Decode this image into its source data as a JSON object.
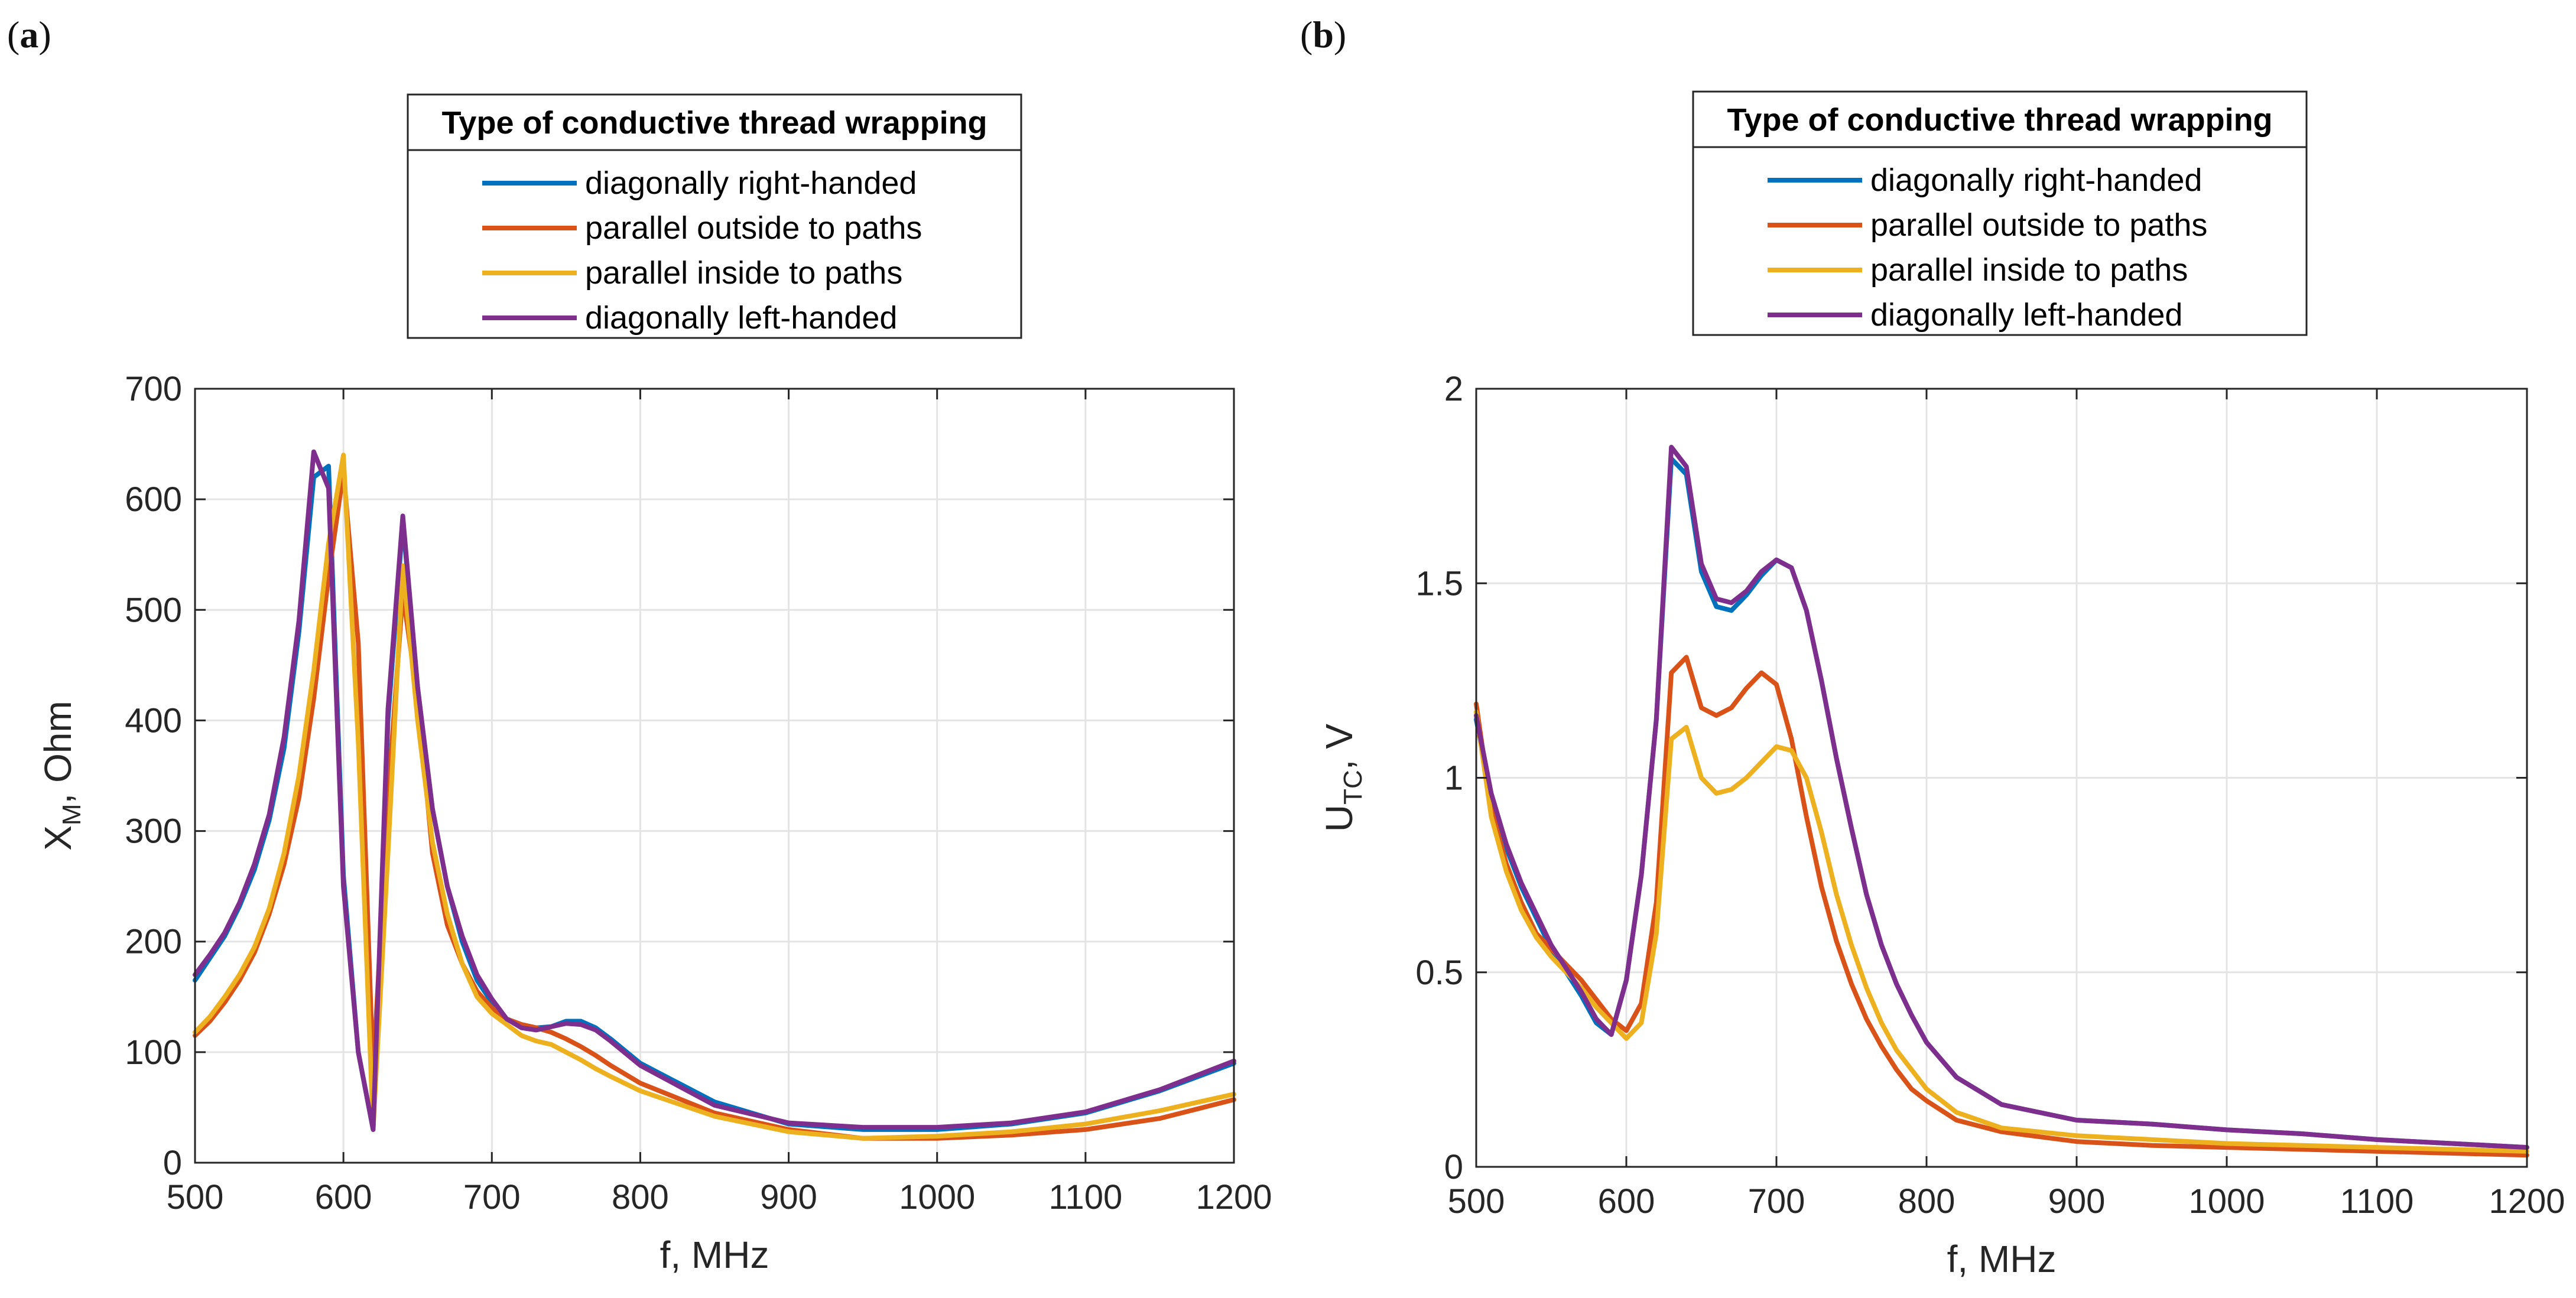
{
  "panels": [
    {
      "letter": "a"
    },
    {
      "letter": "b"
    }
  ],
  "chart_data": [
    {
      "type": "line",
      "panel": "(a)",
      "xlabel": "f, MHz",
      "ylabel": "X_M, Ohm",
      "ylabel_main": "X",
      "ylabel_sub": "M",
      "ylabel_rest": ", Ohm",
      "xlim": [
        500,
        1200
      ],
      "ylim": [
        0,
        700
      ],
      "xticks": [
        500,
        600,
        700,
        800,
        900,
        1000,
        1100,
        1200
      ],
      "yticks": [
        0,
        100,
        200,
        300,
        400,
        500,
        600,
        700
      ],
      "grid": true,
      "legend": {
        "title": "Type of conductive thread wrapping",
        "position": "top-center-outside"
      },
      "series": [
        {
          "name": "diagonally right-handed",
          "color": "#0072BD",
          "x": [
            500,
            510,
            520,
            530,
            540,
            550,
            560,
            570,
            580,
            590,
            600,
            610,
            620,
            630,
            640,
            650,
            660,
            670,
            680,
            690,
            700,
            710,
            720,
            730,
            740,
            750,
            760,
            770,
            780,
            800,
            850,
            900,
            950,
            1000,
            1050,
            1100,
            1150,
            1200
          ],
          "y": [
            165,
            185,
            205,
            232,
            265,
            310,
            375,
            480,
            620,
            630,
            260,
            100,
            30,
            400,
            580,
            430,
            320,
            250,
            200,
            165,
            145,
            130,
            125,
            122,
            123,
            128,
            128,
            122,
            112,
            90,
            55,
            35,
            30,
            30,
            35,
            45,
            65,
            90
          ]
        },
        {
          "name": "parallel outside to paths",
          "color": "#D95319",
          "x": [
            500,
            510,
            520,
            530,
            540,
            550,
            560,
            570,
            580,
            590,
            600,
            610,
            620,
            630,
            640,
            650,
            660,
            670,
            680,
            690,
            700,
            710,
            720,
            730,
            740,
            750,
            760,
            770,
            780,
            800,
            850,
            900,
            950,
            1000,
            1050,
            1100,
            1150,
            1200
          ],
          "y": [
            115,
            128,
            145,
            165,
            190,
            225,
            270,
            330,
            420,
            530,
            625,
            470,
            80,
            330,
            515,
            420,
            280,
            215,
            180,
            155,
            140,
            130,
            125,
            122,
            118,
            112,
            105,
            97,
            88,
            72,
            45,
            30,
            22,
            22,
            25,
            30,
            40,
            57
          ]
        },
        {
          "name": "parallel inside to paths",
          "color": "#EDB120",
          "x": [
            500,
            510,
            520,
            530,
            540,
            550,
            560,
            570,
            580,
            590,
            600,
            610,
            620,
            630,
            640,
            650,
            660,
            670,
            680,
            690,
            700,
            710,
            720,
            730,
            740,
            750,
            760,
            770,
            780,
            800,
            850,
            900,
            950,
            1000,
            1050,
            1100,
            1150,
            1200
          ],
          "y": [
            118,
            132,
            150,
            170,
            195,
            230,
            280,
            350,
            445,
            560,
            640,
            380,
            30,
            280,
            540,
            400,
            290,
            225,
            180,
            150,
            135,
            125,
            115,
            110,
            107,
            100,
            93,
            85,
            78,
            65,
            42,
            28,
            22,
            24,
            28,
            35,
            47,
            62
          ]
        },
        {
          "name": "diagonally left-handed",
          "color": "#7E2F8E",
          "x": [
            500,
            510,
            520,
            530,
            540,
            550,
            560,
            570,
            580,
            590,
            600,
            610,
            620,
            630,
            640,
            650,
            660,
            670,
            680,
            690,
            700,
            710,
            720,
            730,
            740,
            750,
            760,
            770,
            780,
            800,
            850,
            900,
            950,
            1000,
            1050,
            1100,
            1150,
            1200
          ],
          "y": [
            170,
            188,
            208,
            235,
            270,
            315,
            385,
            490,
            643,
            610,
            250,
            100,
            30,
            410,
            585,
            430,
            320,
            250,
            205,
            170,
            148,
            130,
            122,
            120,
            123,
            126,
            125,
            120,
            110,
            88,
            52,
            36,
            32,
            32,
            36,
            46,
            66,
            92
          ]
        }
      ]
    },
    {
      "type": "line",
      "panel": "(b)",
      "xlabel": "f, MHz",
      "ylabel": "U_TC, V",
      "ylabel_main": "U",
      "ylabel_sub": "TC",
      "ylabel_rest": ", V",
      "xlim": [
        500,
        1200
      ],
      "ylim": [
        0,
        2
      ],
      "xticks": [
        500,
        600,
        700,
        800,
        900,
        1000,
        1100,
        1200
      ],
      "yticks": [
        0,
        0.5,
        1,
        1.5,
        2
      ],
      "ytick_labels": [
        "0",
        "0.5",
        "1",
        "1.5",
        "2"
      ],
      "grid": true,
      "legend": {
        "title": "Type of conductive thread wrapping",
        "position": "top-center-outside"
      },
      "series": [
        {
          "name": "diagonally right-handed",
          "color": "#0072BD",
          "x": [
            500,
            510,
            520,
            530,
            540,
            550,
            560,
            570,
            580,
            590,
            600,
            610,
            620,
            630,
            640,
            650,
            660,
            670,
            680,
            690,
            700,
            710,
            720,
            730,
            740,
            750,
            760,
            770,
            780,
            790,
            800,
            820,
            850,
            900,
            950,
            1000,
            1050,
            1100,
            1150,
            1200
          ],
          "y": [
            1.15,
            0.95,
            0.82,
            0.72,
            0.64,
            0.56,
            0.5,
            0.44,
            0.37,
            0.34,
            0.48,
            0.75,
            1.15,
            1.82,
            1.78,
            1.53,
            1.44,
            1.43,
            1.47,
            1.52,
            1.56,
            1.54,
            1.43,
            1.25,
            1.05,
            0.87,
            0.7,
            0.57,
            0.47,
            0.39,
            0.32,
            0.23,
            0.16,
            0.12,
            0.11,
            0.095,
            0.085,
            0.07,
            0.06,
            0.05
          ]
        },
        {
          "name": "parallel outside to paths",
          "color": "#D95319",
          "x": [
            500,
            510,
            520,
            530,
            540,
            550,
            560,
            570,
            580,
            590,
            600,
            610,
            620,
            630,
            640,
            650,
            660,
            670,
            680,
            690,
            700,
            710,
            720,
            730,
            740,
            750,
            760,
            770,
            780,
            790,
            800,
            820,
            850,
            900,
            950,
            1000,
            1050,
            1100,
            1150,
            1200
          ],
          "y": [
            1.19,
            0.92,
            0.78,
            0.68,
            0.6,
            0.56,
            0.52,
            0.48,
            0.43,
            0.38,
            0.35,
            0.42,
            0.68,
            1.27,
            1.31,
            1.18,
            1.16,
            1.18,
            1.23,
            1.27,
            1.24,
            1.1,
            0.9,
            0.72,
            0.58,
            0.47,
            0.38,
            0.31,
            0.25,
            0.2,
            0.17,
            0.12,
            0.09,
            0.065,
            0.055,
            0.05,
            0.045,
            0.04,
            0.035,
            0.03
          ]
        },
        {
          "name": "parallel inside to paths",
          "color": "#EDB120",
          "x": [
            500,
            510,
            520,
            530,
            540,
            550,
            560,
            570,
            580,
            590,
            600,
            610,
            620,
            630,
            640,
            650,
            660,
            670,
            680,
            690,
            700,
            710,
            720,
            730,
            740,
            750,
            760,
            770,
            780,
            790,
            800,
            820,
            850,
            900,
            950,
            1000,
            1050,
            1100,
            1150,
            1200
          ],
          "y": [
            1.17,
            0.9,
            0.76,
            0.66,
            0.59,
            0.54,
            0.5,
            0.46,
            0.41,
            0.37,
            0.33,
            0.37,
            0.6,
            1.1,
            1.13,
            1.0,
            0.96,
            0.97,
            1.0,
            1.04,
            1.08,
            1.07,
            1.0,
            0.86,
            0.7,
            0.57,
            0.46,
            0.37,
            0.3,
            0.25,
            0.2,
            0.14,
            0.1,
            0.08,
            0.07,
            0.06,
            0.055,
            0.05,
            0.045,
            0.04
          ]
        },
        {
          "name": "diagonally left-handed",
          "color": "#7E2F8E",
          "x": [
            500,
            510,
            520,
            530,
            540,
            550,
            560,
            570,
            580,
            590,
            600,
            610,
            620,
            630,
            640,
            650,
            660,
            670,
            680,
            690,
            700,
            710,
            720,
            730,
            740,
            750,
            760,
            770,
            780,
            790,
            800,
            820,
            850,
            900,
            950,
            1000,
            1050,
            1100,
            1150,
            1200
          ],
          "y": [
            1.16,
            0.96,
            0.83,
            0.73,
            0.65,
            0.57,
            0.51,
            0.45,
            0.38,
            0.34,
            0.48,
            0.75,
            1.15,
            1.85,
            1.8,
            1.55,
            1.46,
            1.45,
            1.48,
            1.53,
            1.56,
            1.54,
            1.43,
            1.25,
            1.05,
            0.87,
            0.7,
            0.57,
            0.47,
            0.39,
            0.32,
            0.23,
            0.16,
            0.12,
            0.11,
            0.095,
            0.085,
            0.07,
            0.06,
            0.05
          ]
        }
      ]
    }
  ]
}
